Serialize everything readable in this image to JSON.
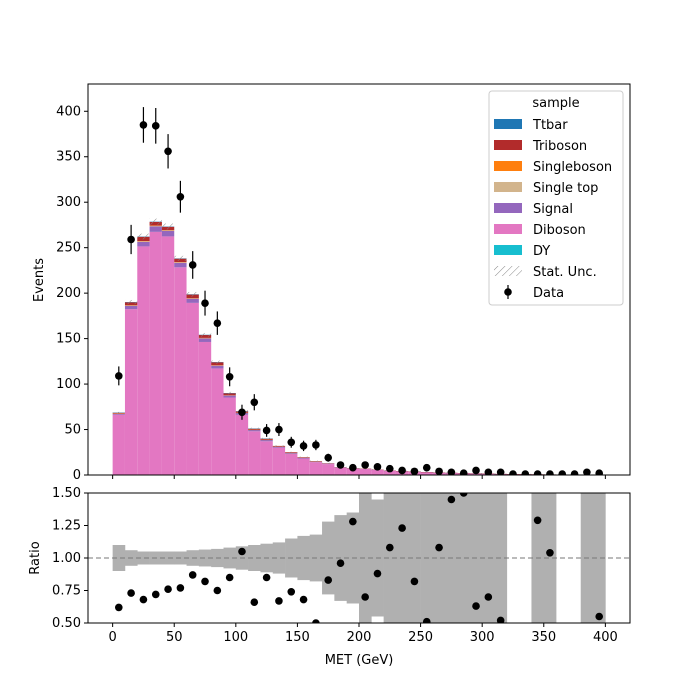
{
  "chart_data": {
    "type": "bar",
    "subtype": "stacked histogram with data points and ratio panel",
    "xlabel": "MET (GeV)",
    "xlim": [
      -20,
      420
    ],
    "xticks": [
      "0",
      "50",
      "100",
      "150",
      "200",
      "250",
      "300",
      "350",
      "400"
    ],
    "bin_edges": [
      0,
      10,
      20,
      30,
      40,
      50,
      60,
      70,
      80,
      90,
      100,
      110,
      120,
      130,
      140,
      150,
      160,
      170,
      180,
      190,
      200,
      210,
      220,
      230,
      240,
      250,
      260,
      270,
      280,
      290,
      300,
      310,
      320,
      330,
      340,
      350,
      360,
      370,
      380,
      390,
      400
    ],
    "bin_centers": [
      5,
      15,
      25,
      35,
      45,
      55,
      65,
      75,
      85,
      95,
      105,
      115,
      125,
      135,
      145,
      155,
      165,
      175,
      185,
      195,
      205,
      215,
      225,
      235,
      245,
      255,
      265,
      275,
      285,
      295,
      305,
      315,
      325,
      335,
      345,
      355,
      365,
      375,
      385,
      395
    ],
    "main_panel": {
      "ylabel": "Events",
      "ylim": [
        0,
        430
      ],
      "yticks": [
        "0",
        "50",
        "100",
        "150",
        "200",
        "250",
        "300",
        "350",
        "400"
      ],
      "stack_order_bottom_to_top": [
        "DY",
        "Diboson",
        "Signal",
        "Single top",
        "Singleboson",
        "Triboson",
        "Ttbar"
      ],
      "series": [
        {
          "name": "DY",
          "color": "#17becf",
          "values": [
            0.3,
            0.4,
            0.4,
            0.4,
            0.4,
            0.4,
            0.3,
            0.3,
            0.2,
            0.2,
            0.2,
            0.1,
            0.1,
            0.1,
            0.1,
            0.1,
            0.1,
            0,
            0,
            0,
            0,
            0,
            0,
            0,
            0,
            0,
            0,
            0,
            0,
            0,
            0,
            0,
            0,
            0,
            0,
            0,
            0,
            0,
            0,
            0
          ]
        },
        {
          "name": "Diboson",
          "color": "#e377c2",
          "values": [
            66,
            182,
            251,
            267,
            262,
            228,
            189,
            146,
            117,
            85,
            66,
            48,
            37,
            30,
            23,
            18,
            14,
            12,
            8,
            7,
            6.5,
            5.5,
            4.5,
            4,
            3.5,
            3,
            2.5,
            2.2,
            1.8,
            1.6,
            1.4,
            1.1,
            0.9,
            0.8,
            0.6,
            0.5,
            0.45,
            0.35,
            0.3,
            0.25
          ]
        },
        {
          "name": "Signal",
          "color": "#9467bd",
          "values": [
            1,
            3.5,
            5,
            6,
            6,
            5,
            4.5,
            4,
            3,
            2.5,
            2,
            1.5,
            1.5,
            1,
            1,
            0.8,
            0.6,
            0.5,
            0.4,
            0.3,
            0.3,
            0.3,
            0.2,
            0.2,
            0.2,
            0.1,
            0.1,
            0.1,
            0.1,
            0.1,
            0.1,
            0.05,
            0.05,
            0.05,
            0.05,
            0.05,
            0,
            0,
            0,
            0
          ]
        },
        {
          "name": "Single top",
          "color": "#d2b48c",
          "values": [
            0.2,
            0.5,
            0.6,
            0.7,
            0.6,
            0.5,
            0.4,
            0.3,
            0.3,
            0.2,
            0.2,
            0.1,
            0.1,
            0.1,
            0.1,
            0.1,
            0.1,
            0,
            0,
            0,
            0,
            0,
            0,
            0,
            0,
            0,
            0,
            0,
            0,
            0,
            0,
            0,
            0,
            0,
            0,
            0,
            0,
            0,
            0,
            0
          ]
        },
        {
          "name": "Singleboson",
          "color": "#ff7f0e",
          "values": [
            0.2,
            0.3,
            0.3,
            0.3,
            0.3,
            0.3,
            0.2,
            0.2,
            0.2,
            0.1,
            0.1,
            0.1,
            0.1,
            0,
            0,
            0,
            0,
            0,
            0,
            0,
            0,
            0,
            0,
            0,
            0,
            0,
            0,
            0,
            0,
            0,
            0,
            0,
            0,
            0,
            0,
            0,
            0,
            0,
            0,
            0
          ]
        },
        {
          "name": "Triboson",
          "color": "#b22b2b",
          "values": [
            0.8,
            3.3,
            4.7,
            3.9,
            3.7,
            3.8,
            4.1,
            3.2,
            3.3,
            2,
            1.5,
            1.2,
            1.2,
            0.8,
            0.8,
            0.6,
            0.5,
            0.4,
            0.3,
            0.3,
            0.2,
            0.2,
            0.2,
            0.2,
            0.2,
            0.1,
            0.1,
            0.1,
            0.1,
            0.1,
            0.1,
            0.1,
            0.1,
            0.1,
            0.1,
            0.1,
            0.05,
            0.05,
            0.05,
            0.05
          ]
        },
        {
          "name": "Ttbar",
          "color": "#1f77b4",
          "values": [
            0.1,
            0.2,
            0.3,
            0.3,
            0.3,
            0.2,
            0.2,
            0.2,
            0.1,
            0.1,
            0.1,
            0.1,
            0.1,
            0,
            0,
            0,
            0,
            0,
            0,
            0,
            0,
            0,
            0,
            0,
            0,
            0,
            0,
            0,
            0,
            0,
            0,
            0,
            0,
            0,
            0,
            0,
            0,
            0,
            0,
            0
          ]
        }
      ],
      "data": {
        "name": "Data",
        "values": [
          109,
          259,
          385,
          384,
          356,
          306,
          231,
          189,
          167,
          108,
          69,
          80,
          49,
          50,
          36,
          32,
          33,
          19,
          11,
          8,
          11,
          9,
          7,
          5,
          4,
          8,
          4,
          3,
          2,
          5,
          3,
          3,
          1,
          1,
          1,
          1,
          1,
          1,
          3,
          2
        ],
        "errors": [
          10.4,
          16.1,
          19.6,
          19.6,
          18.9,
          17.5,
          15.2,
          13.7,
          12.9,
          10.4,
          8.3,
          8.9,
          7,
          7.1,
          6,
          5.7,
          5.7,
          4.4,
          3.3,
          2.8,
          3.3,
          3,
          2.6,
          2.2,
          2,
          2.8,
          2,
          1.7,
          1.4,
          2.2,
          1.7,
          1.7,
          1,
          1,
          1,
          1,
          1,
          1,
          1.7,
          1.4
        ]
      },
      "stat_unc": {
        "name": "Stat. Unc.",
        "relative": [
          0.012,
          0.012,
          0.012,
          0.012,
          0.012,
          0.012,
          0.013,
          0.013,
          0.014,
          0.015,
          0.016,
          0.018,
          0.02,
          0.022,
          0.025,
          0.03,
          0.035,
          0.04,
          0.05,
          0.06,
          0.07,
          0.08,
          0.09,
          0.1,
          0.12,
          0.14,
          0.16,
          0.18,
          0.2,
          0.22,
          0.25,
          0.28,
          0.3,
          0.35,
          0.4,
          0.4,
          0.45,
          0.5,
          0.55,
          0.6
        ]
      }
    },
    "legend": {
      "title": "sample",
      "placement": "top-right",
      "entries": [
        {
          "label": "Ttbar",
          "kind": "patch",
          "color": "#1f77b4"
        },
        {
          "label": "Triboson",
          "kind": "patch",
          "color": "#b22b2b"
        },
        {
          "label": "Singleboson",
          "kind": "patch",
          "color": "#ff7f0e"
        },
        {
          "label": "Single top",
          "kind": "patch",
          "color": "#d2b48c"
        },
        {
          "label": "Signal",
          "kind": "patch",
          "color": "#9467bd"
        },
        {
          "label": "Diboson",
          "kind": "patch",
          "color": "#e377c2"
        },
        {
          "label": "DY",
          "kind": "patch",
          "color": "#17becf"
        },
        {
          "label": "Stat. Unc.",
          "kind": "hatch",
          "color": "#888888"
        },
        {
          "label": "Data",
          "kind": "errorbar",
          "color": "#000000"
        }
      ]
    },
    "ratio_panel": {
      "ylabel": "Ratio",
      "ylim": [
        0.5,
        1.5
      ],
      "yticks": [
        "0.50",
        "0.75",
        "1.00",
        "1.25",
        "1.50"
      ],
      "reference_line": 1.0,
      "band_color": "#b0b0b0",
      "band_half_width": [
        0.1,
        0.06,
        0.05,
        0.05,
        0.05,
        0.05,
        0.06,
        0.065,
        0.07,
        0.08,
        0.09,
        0.1,
        0.11,
        0.12,
        0.15,
        0.17,
        0.18,
        0.28,
        0.33,
        0.35,
        0.5,
        0.45,
        0.55,
        0.65,
        0.75,
        0.85,
        0.95,
        0.95,
        0.95,
        0.95,
        0.95,
        0.95,
        null,
        null,
        0.95,
        0.95,
        null,
        null,
        0.95,
        0.95
      ],
      "ratio_values": [
        0.62,
        0.73,
        0.68,
        0.72,
        0.76,
        0.77,
        0.87,
        0.82,
        0.75,
        0.85,
        1.05,
        0.66,
        0.85,
        0.67,
        0.74,
        0.68,
        0.5,
        0.83,
        0.96,
        1.28,
        0.7,
        0.88,
        1.08,
        1.23,
        0.82,
        0.51,
        1.08,
        1.45,
        1.5,
        0.63,
        0.7,
        0.52,
        null,
        null,
        1.29,
        1.04,
        null,
        null,
        null,
        0.55
      ]
    }
  }
}
